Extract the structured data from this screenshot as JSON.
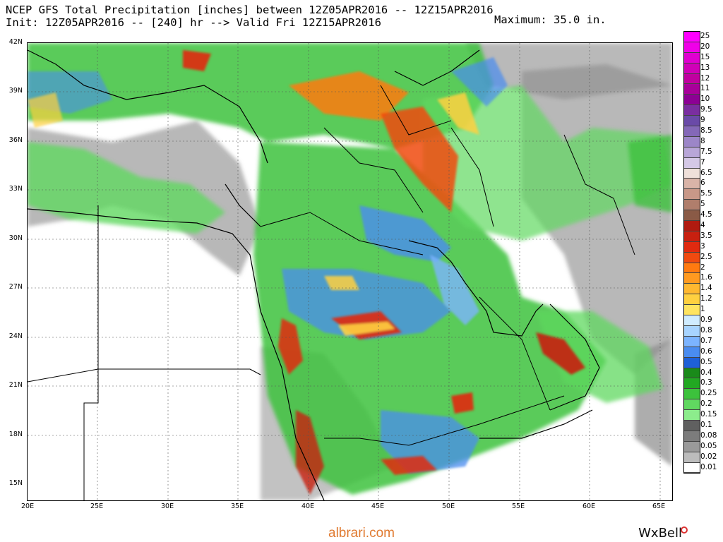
{
  "header": {
    "line1": "NCEP GFS Total Precipitation [inches] between 12Z05APR2016 -- 12Z15APR2016",
    "line2": "Init: 12Z05APR2016 -- [240] hr --> Valid Fri 12Z15APR2016",
    "maximum": "Maximum: 35.0 in."
  },
  "map": {
    "lat_labels": [
      "42N",
      "39N",
      "36N",
      "33N",
      "30N",
      "27N",
      "24N",
      "21N",
      "18N",
      "15N"
    ],
    "lon_labels": [
      "20E",
      "25E",
      "30E",
      "35E",
      "40E",
      "45E",
      "50E",
      "55E",
      "60E",
      "65E"
    ],
    "background": "#ffffff",
    "border_color": "#000000"
  },
  "colorbar": {
    "levels": [
      "25",
      "20",
      "15",
      "13",
      "12",
      "11",
      "10",
      "9.5",
      "9",
      "8.5",
      "8",
      "7.5",
      "7",
      "6.5",
      "6",
      "5.5",
      "5",
      "4.5",
      "4",
      "3.5",
      "3",
      "2.5",
      "2",
      "1.6",
      "1.4",
      "1.2",
      "1",
      "0.9",
      "0.8",
      "0.7",
      "0.6",
      "0.5",
      "0.4",
      "0.3",
      "0.25",
      "0.2",
      "0.15",
      "0.1",
      "0.08",
      "0.05",
      "0.02",
      "0.01"
    ],
    "colors": [
      "#ff00ff",
      "#f000e8",
      "#e000d0",
      "#d000b8",
      "#c000a0",
      "#a8009a",
      "#8c0094",
      "#7a2ea0",
      "#6a4aa8",
      "#8468b8",
      "#9c86c8",
      "#b8a6d8",
      "#d4c8e6",
      "#efe0da",
      "#d9b4a8",
      "#c89888",
      "#b07e6c",
      "#8a5a46",
      "#b01a10",
      "#c82010",
      "#e02a10",
      "#f04a10",
      "#ff7a10",
      "#ff9a20",
      "#ffb830",
      "#ffd040",
      "#ffe460",
      "#d0ecff",
      "#a8d4ff",
      "#7cb4ff",
      "#4a8cf0",
      "#1e60d8",
      "#1a8a1a",
      "#22a822",
      "#3cc23c",
      "#60d860",
      "#8cec8c",
      "#606060",
      "#7c7c7c",
      "#9a9a9a",
      "#bcbcbc",
      "#ffffff"
    ]
  },
  "footer": {
    "site": "albrari.com",
    "brand": "WxBell"
  }
}
